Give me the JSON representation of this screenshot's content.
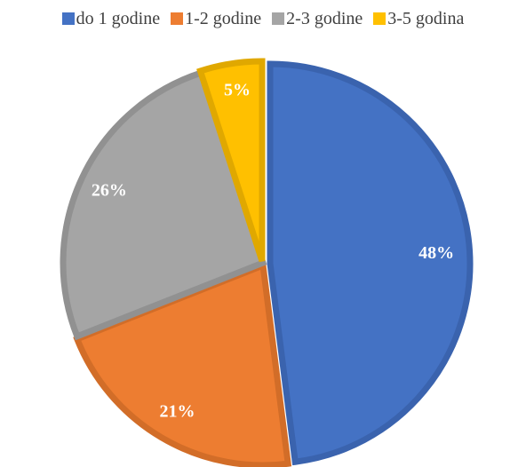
{
  "chart_data": {
    "type": "pie",
    "categories": [
      "do 1 godine",
      "1-2 godine",
      "2-3 godine",
      "3-5 godina"
    ],
    "values": [
      48,
      21,
      26,
      5
    ],
    "labels": [
      "48%",
      "21%",
      "26%",
      "5%"
    ],
    "colors": [
      "#4472C4",
      "#ED7D31",
      "#A5A5A5",
      "#FFC000"
    ],
    "edge_colors": [
      "#3A63AE",
      "#D26D28",
      "#919191",
      "#E0A800"
    ],
    "legend_position": "top"
  }
}
